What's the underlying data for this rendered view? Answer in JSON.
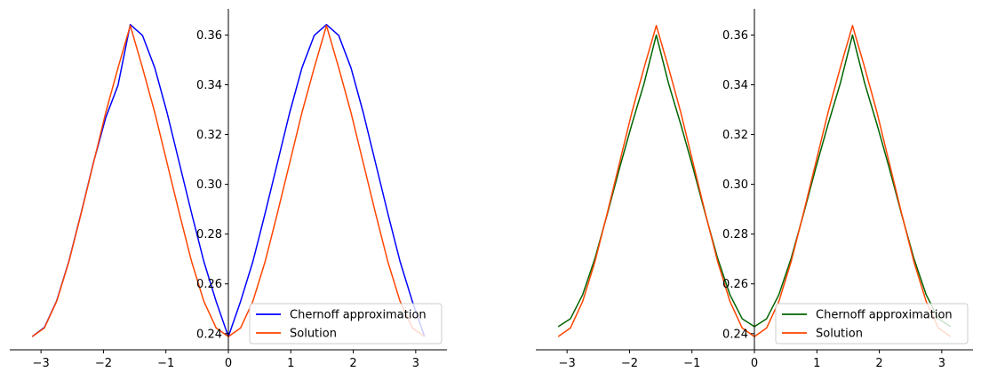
{
  "chart_data": [
    {
      "type": "line",
      "title": "",
      "xlabel": "",
      "ylabel": "",
      "xlim": [
        -3.5,
        3.5
      ],
      "ylim": [
        0.2335,
        0.3705
      ],
      "x_ticks": [
        -3,
        -2,
        -1,
        0,
        1,
        2,
        3
      ],
      "x_tick_labels": [
        "−3",
        "−2",
        "−1",
        "0",
        "1",
        "2",
        "3"
      ],
      "y_ticks": [
        0.24,
        0.26,
        0.28,
        0.3,
        0.32,
        0.34,
        0.36
      ],
      "y_tick_labels": [
        "0.24",
        "0.26",
        "0.28",
        "0.30",
        "0.32",
        "0.34",
        "0.36"
      ],
      "grid": false,
      "legend_position": "lower-right",
      "series": [
        {
          "name": "Chernoff approximation",
          "color": "#0000ff",
          "x": [
            -3.1416,
            -2.9452,
            -2.7489,
            -2.5525,
            -2.3562,
            -2.1598,
            -1.9635,
            -1.7671,
            -1.5708,
            -1.3744,
            -1.1781,
            -0.9817,
            -0.7854,
            -0.589,
            -0.3927,
            -0.1963,
            0.0,
            0.1963,
            0.3927,
            0.589,
            0.7854,
            0.9817,
            1.1781,
            1.3744,
            1.5708,
            1.7671,
            1.9635,
            2.1598,
            2.3562,
            2.5525,
            2.7489,
            2.9452,
            3.1416
          ],
          "y": [
            0.2388,
            0.2425,
            0.2532,
            0.2692,
            0.2886,
            0.3088,
            0.3268,
            0.3398,
            0.3642,
            0.3598,
            0.3468,
            0.3288,
            0.3086,
            0.2884,
            0.269,
            0.253,
            0.2388,
            0.253,
            0.269,
            0.2884,
            0.3086,
            0.3288,
            0.3468,
            0.3598,
            0.3642,
            0.3598,
            0.3468,
            0.3288,
            0.3086,
            0.2884,
            0.269,
            0.253,
            0.2388
          ]
        },
        {
          "name": "Solution",
          "color": "#ff4500",
          "x": [
            -3.1416,
            -2.9452,
            -2.7489,
            -2.5525,
            -2.3562,
            -2.1598,
            -1.9635,
            -1.7671,
            -1.5708,
            -1.3744,
            -1.1781,
            -0.9817,
            -0.7854,
            -0.589,
            -0.3927,
            -0.1963,
            0.0,
            0.1963,
            0.3927,
            0.589,
            0.7854,
            0.9817,
            1.1781,
            1.3744,
            1.5708,
            1.7671,
            1.9635,
            2.1598,
            2.3562,
            2.5525,
            2.7489,
            2.9452,
            3.1416
          ],
          "y": [
            0.2388,
            0.2423,
            0.253,
            0.269,
            0.2884,
            0.3086,
            0.3288,
            0.3468,
            0.3638,
            0.3468,
            0.3288,
            0.3086,
            0.2884,
            0.269,
            0.253,
            0.2423,
            0.2388,
            0.2423,
            0.253,
            0.269,
            0.2884,
            0.3086,
            0.3288,
            0.3468,
            0.3638,
            0.3468,
            0.3288,
            0.3086,
            0.2884,
            0.269,
            0.253,
            0.2423,
            0.2388
          ]
        }
      ]
    },
    {
      "type": "line",
      "title": "",
      "xlabel": "",
      "ylabel": "",
      "xlim": [
        -3.5,
        3.5
      ],
      "ylim": [
        0.2335,
        0.3705
      ],
      "x_ticks": [
        -3,
        -2,
        -1,
        0,
        1,
        2,
        3
      ],
      "x_tick_labels": [
        "−3",
        "−2",
        "−1",
        "0",
        "1",
        "2",
        "3"
      ],
      "y_ticks": [
        0.24,
        0.26,
        0.28,
        0.3,
        0.32,
        0.34,
        0.36
      ],
      "y_tick_labels": [
        "0.24",
        "0.26",
        "0.28",
        "0.30",
        "0.32",
        "0.34",
        "0.36"
      ],
      "grid": false,
      "legend_position": "lower-right",
      "series": [
        {
          "name": "Chernoff approximation",
          "color": "#006400",
          "x": [
            -3.1416,
            -2.9452,
            -2.7489,
            -2.5525,
            -2.3562,
            -2.1598,
            -1.9635,
            -1.7671,
            -1.5708,
            -1.3744,
            -1.1781,
            -0.9817,
            -0.7854,
            -0.589,
            -0.3927,
            -0.1963,
            0.0,
            0.1963,
            0.3927,
            0.589,
            0.7854,
            0.9817,
            1.1781,
            1.3744,
            1.5708,
            1.7671,
            1.9635,
            2.1598,
            2.3562,
            2.5525,
            2.7489,
            2.9452,
            3.1416
          ],
          "y": [
            0.2428,
            0.246,
            0.2557,
            0.2703,
            0.288,
            0.3065,
            0.324,
            0.3405,
            0.36,
            0.3405,
            0.324,
            0.3065,
            0.288,
            0.2703,
            0.2557,
            0.246,
            0.2428,
            0.246,
            0.2557,
            0.2703,
            0.288,
            0.3065,
            0.324,
            0.3405,
            0.36,
            0.3405,
            0.324,
            0.3065,
            0.288,
            0.2703,
            0.2557,
            0.246,
            0.2428
          ]
        },
        {
          "name": "Solution",
          "color": "#ff4500",
          "x": [
            -3.1416,
            -2.9452,
            -2.7489,
            -2.5525,
            -2.3562,
            -2.1598,
            -1.9635,
            -1.7671,
            -1.5708,
            -1.3744,
            -1.1781,
            -0.9817,
            -0.7854,
            -0.589,
            -0.3927,
            -0.1963,
            0.0,
            0.1963,
            0.3927,
            0.589,
            0.7854,
            0.9817,
            1.1781,
            1.3744,
            1.5708,
            1.7671,
            1.9635,
            2.1598,
            2.3562,
            2.5525,
            2.7489,
            2.9452,
            3.1416
          ],
          "y": [
            0.2388,
            0.2423,
            0.253,
            0.269,
            0.2884,
            0.3086,
            0.3288,
            0.3468,
            0.3638,
            0.3468,
            0.3288,
            0.3086,
            0.2884,
            0.269,
            0.253,
            0.2423,
            0.2388,
            0.2423,
            0.253,
            0.269,
            0.2884,
            0.3086,
            0.3288,
            0.3468,
            0.3638,
            0.3468,
            0.3288,
            0.3086,
            0.2884,
            0.269,
            0.253,
            0.2423,
            0.2388
          ]
        }
      ]
    }
  ]
}
